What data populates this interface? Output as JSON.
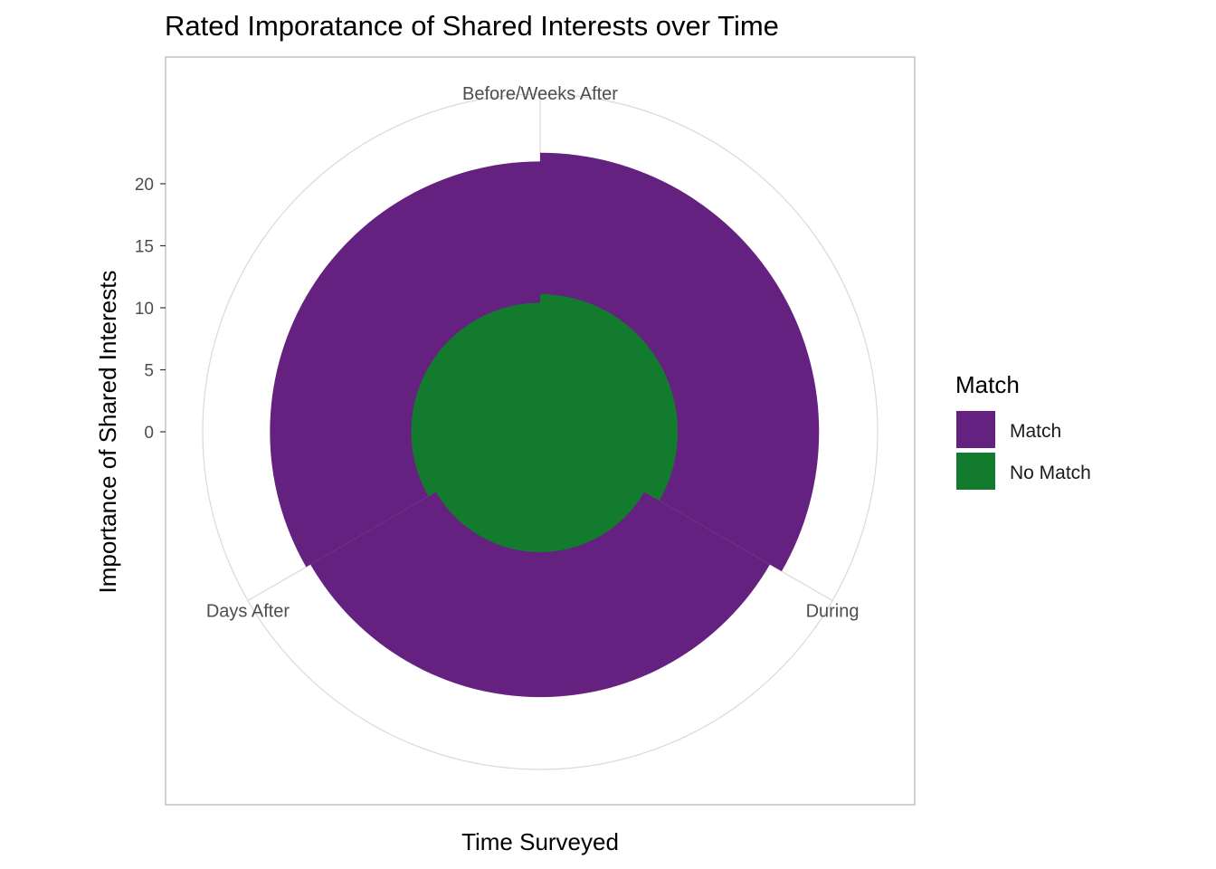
{
  "chart_data": {
    "type": "bar",
    "coord": "polar",
    "title": "Rated Imporatance of Shared Interests over Time",
    "xlabel": "Time Surveyed",
    "ylabel": "Importance of Shared Interests",
    "categories": [
      "Before/Weeks After",
      "During",
      "Days After"
    ],
    "y_ticks": [
      0,
      5,
      10,
      15,
      20
    ],
    "ylim": [
      0,
      20
    ],
    "series": [
      {
        "name": "Match",
        "color": "#65217f",
        "values": [
          22.5,
          21.4,
          21.8
        ]
      },
      {
        "name": "No Match",
        "color": "#137b2e",
        "values": [
          11.1,
          9.7,
          10.4
        ]
      }
    ],
    "legend": {
      "title": "Match",
      "position": "right"
    },
    "grid": true
  }
}
